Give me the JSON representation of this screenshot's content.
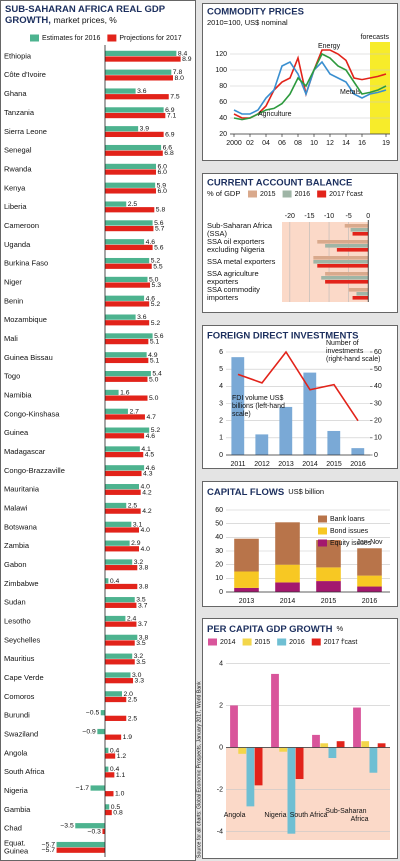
{
  "chart_data": [
    {
      "type": "bar",
      "orientation": "horizontal",
      "title": "SUB-SAHARAN AFRICA REAL GDP GROWTH,",
      "subtitle": "market prices, %",
      "categories": [
        "Ethiopia",
        "Côte d'Ivoire",
        "Ghana",
        "Tanzania",
        "Sierra Leone",
        "Senegal",
        "Rwanda",
        "Kenya",
        "Liberia",
        "Cameroon",
        "Uganda",
        "Burkina Faso",
        "Niger",
        "Benin",
        "Mozambique",
        "Mali",
        "Guinea Bissau",
        "Togo",
        "Namibia",
        "Congo-Kinshasa",
        "Guinea",
        "Madagascar",
        "Congo-Brazzaville",
        "Mauritania",
        "Malawi",
        "Botswana",
        "Zambia",
        "Gabon",
        "Zimbabwe",
        "Sudan",
        "Lesotho",
        "Seychelles",
        "Mauritius",
        "Cape Verde",
        "Comoros",
        "Burundi",
        "Swaziland",
        "Angola",
        "South Africa",
        "Nigeria",
        "Gambia",
        "Chad",
        "Equat. Guinea"
      ],
      "series": [
        {
          "name": "Estimates for 2016",
          "color": "#4db38f",
          "values": [
            8.4,
            7.8,
            3.6,
            6.9,
            3.9,
            6.6,
            6.0,
            5.9,
            2.5,
            5.6,
            4.6,
            5.2,
            5.0,
            4.6,
            3.6,
            5.6,
            4.9,
            5.4,
            1.6,
            2.7,
            5.2,
            4.1,
            4.6,
            4.0,
            2.5,
            3.1,
            2.9,
            3.2,
            0.4,
            3.5,
            2.4,
            3.8,
            3.2,
            3.0,
            2.0,
            -0.5,
            -0.9,
            0.4,
            0.4,
            -1.7,
            0.5,
            -3.5,
            -5.7
          ],
          "value_labels": [
            "8.4",
            "7.8",
            "3.6",
            "6.9",
            "3.9",
            "6.6",
            "6.0",
            "5.9",
            "2.5",
            "5.6",
            "4.6",
            "5.2",
            "5.0",
            "4.6",
            "3.6",
            "5.6",
            "4.9",
            "5.4",
            "1.6",
            "2.7",
            "5.2",
            "4.1",
            "4.6",
            "4.0",
            "2.5",
            "3.1",
            "2.9",
            "3.2",
            "0.4",
            "3.5",
            "2.4",
            "3.8",
            "3.2",
            "3.0",
            "2.0",
            "−0.5",
            "−0.9",
            "0.4",
            "0.4",
            "−1.7",
            "0.5",
            "−3.5",
            "−5.7"
          ]
        },
        {
          "name": "Projections for 2017",
          "color": "#e2231a",
          "values": [
            8.9,
            8.0,
            7.5,
            7.1,
            6.9,
            6.8,
            6.0,
            6.0,
            5.8,
            5.7,
            5.6,
            5.5,
            5.3,
            5.2,
            5.2,
            5.1,
            5.1,
            5.0,
            5.0,
            4.7,
            4.6,
            4.5,
            4.3,
            4.2,
            4.2,
            4.0,
            4.0,
            3.8,
            3.8,
            3.7,
            3.7,
            3.5,
            3.5,
            3.3,
            2.5,
            2.5,
            1.9,
            1.2,
            1.1,
            1.0,
            0.8,
            -0.3,
            -5.7
          ],
          "value_labels": [
            "8.9",
            "8.0",
            "7.5",
            "7.1",
            "6.9",
            "6.8",
            "6.0",
            "6.0",
            "5.8",
            "5.7",
            "5.6",
            "5.5",
            "5.3",
            "5.2",
            "5.2",
            "5.1",
            "5.1",
            "5.0",
            "5.0",
            "4.7",
            "4.6",
            "4.5",
            "4.3",
            "4.2",
            "4.2",
            "4.0",
            "4.0",
            "3.8",
            "3.8",
            "3.7",
            "3.7",
            "3.5",
            "3.5",
            "3.3",
            "2.5",
            "2.5",
            "1.9",
            "1.2",
            "1.1",
            "1.0",
            "0.8",
            "−0.3",
            "−5.7"
          ]
        }
      ],
      "xlim": [
        -6,
        10
      ]
    },
    {
      "type": "line",
      "title": "COMMODITY PRICES",
      "subtitle": "2010=100, US$ nominal",
      "x": [
        2000,
        2001,
        2002,
        2003,
        2004,
        2005,
        2006,
        2007,
        2008,
        2009,
        2010,
        2011,
        2012,
        2013,
        2014,
        2015,
        2016,
        2017,
        2018,
        2019
      ],
      "series": [
        {
          "name": "Energy",
          "color": "#e2231a",
          "values": [
            45,
            40,
            40,
            45,
            55,
            75,
            85,
            90,
            115,
            70,
            100,
            125,
            125,
            120,
            112,
            90,
            88,
            90,
            92,
            95
          ]
        },
        {
          "name": "Metals",
          "color": "#3a8fd0",
          "values": [
            50,
            45,
            45,
            50,
            65,
            75,
            105,
            110,
            95,
            70,
            100,
            110,
            95,
            90,
            85,
            70,
            65,
            70,
            72,
            75
          ]
        },
        {
          "name": "Agriculture",
          "color": "#2e9a3e",
          "values": [
            40,
            38,
            40,
            45,
            50,
            52,
            58,
            70,
            90,
            80,
            100,
            120,
            115,
            105,
            100,
            85,
            70,
            72,
            75,
            80
          ]
        }
      ],
      "xlim": [
        1999.5,
        2019.5
      ],
      "xticks": [
        {
          "value": 2000,
          "label": "2000"
        },
        {
          "value": 2002,
          "label": "02"
        },
        {
          "value": 2004,
          "label": "04"
        },
        {
          "value": 2006,
          "label": "06"
        },
        {
          "value": 2008,
          "label": "08"
        },
        {
          "value": 2010,
          "label": "10"
        },
        {
          "value": 2012,
          "label": "12"
        },
        {
          "value": 2014,
          "label": "14"
        },
        {
          "value": 2016,
          "label": "16"
        },
        {
          "value": 2019,
          "label": "19"
        }
      ],
      "ylim": [
        20,
        135
      ],
      "yticks": [
        20,
        40,
        60,
        80,
        100,
        120
      ],
      "grid": true,
      "shade": {
        "from": 2017,
        "label": "forecasts"
      }
    },
    {
      "type": "bar",
      "orientation": "horizontal",
      "title": "CURRENT ACCOUNT BALANCE",
      "subtitle": "% of GDP",
      "categories": [
        "Sub-Saharan Africa (SSA)",
        "SSA oil exporters excluding Nigeria",
        "SSA metal exporters",
        "SSA agriculture exporters",
        "SSA commodity importers"
      ],
      "series": [
        {
          "name": "2015",
          "color": "#d9a98c",
          "values": [
            -6,
            -13,
            -14,
            -11,
            -5
          ]
        },
        {
          "name": "2016",
          "color": "#9fb5a6",
          "values": [
            -4.5,
            -11,
            -14,
            -12,
            -3
          ]
        },
        {
          "name": "2017 f'cast",
          "color": "#e2231a",
          "values": [
            -4,
            -8,
            -13,
            -11,
            -4
          ]
        }
      ],
      "xlim": [
        -22,
        3
      ],
      "xticks": [
        -20,
        -15,
        -10,
        -5,
        0
      ],
      "grid": true,
      "shade_negative": true
    },
    {
      "type": "bar",
      "title": "FOREIGN DIRECT INVESTMENTS",
      "categories": [
        "2011",
        "2012",
        "2013",
        "2014",
        "2015",
        "2016"
      ],
      "series": [
        {
          "name": "FDI volume US$ billions (left-hand scale)",
          "color": "#7aa9d6",
          "values": [
            5.7,
            1.2,
            2.8,
            4.8,
            1.4,
            0.4
          ]
        },
        {
          "name": "Number of investments (right-hand scale)",
          "type": "line",
          "axis": "y2",
          "color": "#e2231a",
          "values": [
            47,
            42,
            60,
            38,
            41,
            20
          ]
        }
      ],
      "ylim": [
        0,
        6
      ],
      "yticks": [
        0,
        1,
        2,
        3,
        4,
        5,
        6
      ],
      "y2lim": [
        0,
        60
      ],
      "y2ticks": [
        0,
        10,
        20,
        30,
        40,
        50,
        60
      ],
      "grid": true
    },
    {
      "type": "bar",
      "stacked": true,
      "title": "CAPITAL FLOWS",
      "subtitle": "US$ billion",
      "categories": [
        "2013",
        "2014",
        "2015",
        "2016"
      ],
      "series": [
        {
          "name": "Bank loans",
          "color": "#b8744a",
          "values": [
            24,
            31,
            20,
            20
          ]
        },
        {
          "name": "Bond issues",
          "color": "#f7c823",
          "values": [
            12,
            13,
            10,
            8
          ]
        },
        {
          "name": "Equity issues",
          "color": "#a3186e",
          "values": [
            3,
            7,
            8,
            4
          ]
        }
      ],
      "ylim": [
        0,
        60
      ],
      "yticks": [
        0,
        10,
        20,
        30,
        40,
        50,
        60
      ],
      "grid": true,
      "annotation": "Jan-Nov"
    },
    {
      "type": "bar",
      "title": "PER CAPITA GDP GROWTH",
      "subtitle": "%",
      "categories": [
        "Angola",
        "Nigeria",
        "South Africa",
        "Sub-Saharan Africa"
      ],
      "series": [
        {
          "name": "2014",
          "color": "#d9559b",
          "values": [
            2.0,
            3.5,
            0.6,
            1.9
          ]
        },
        {
          "name": "2015",
          "color": "#f3d64a",
          "values": [
            -0.3,
            -0.2,
            0.2,
            0.3
          ]
        },
        {
          "name": "2016",
          "color": "#6fbfd3",
          "values": [
            -2.8,
            -4.1,
            -0.5,
            -1.2
          ]
        },
        {
          "name": "2017 f'cast",
          "color": "#e2231a",
          "values": [
            -1.8,
            -1.5,
            0.3,
            0.2
          ]
        }
      ],
      "ylim": [
        -4.4,
        4.4
      ],
      "yticks": [
        -4,
        -2,
        0,
        2,
        4
      ],
      "grid": true,
      "shade_negative": true
    }
  ],
  "source": "Source for all charts: Global Economic Prospects, January 2017, World Bank"
}
